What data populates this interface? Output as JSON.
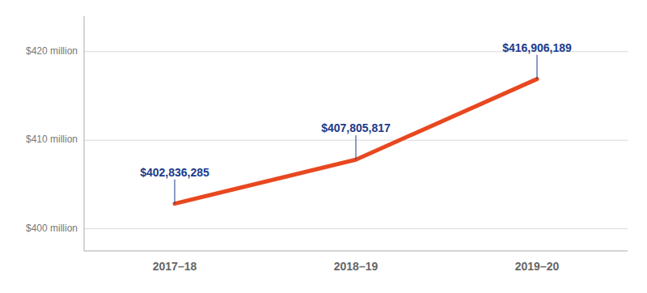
{
  "chart_data": {
    "type": "line",
    "categories": [
      "2017–18",
      "2018–19",
      "2019–20"
    ],
    "values": [
      402836285,
      407805817,
      416906189
    ],
    "value_labels": [
      "$402,836,285",
      "$407,805,817",
      "$416,906,189"
    ],
    "data_labels": true,
    "color": "#E8481F",
    "ylim": [
      397500000,
      424000000
    ],
    "yticks": [
      {
        "value": 400000000,
        "label": "$400 million"
      },
      {
        "value": 410000000,
        "label": "$410 million"
      },
      {
        "value": 420000000,
        "label": "$420 million"
      }
    ],
    "grid": true
  }
}
